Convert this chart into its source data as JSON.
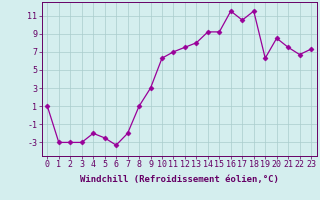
{
  "x": [
    0,
    1,
    2,
    3,
    4,
    5,
    6,
    7,
    8,
    9,
    10,
    11,
    12,
    13,
    14,
    15,
    16,
    17,
    18,
    19,
    20,
    21,
    22,
    23
  ],
  "y": [
    1,
    -3,
    -3,
    -3,
    -2,
    -2.5,
    -3.3,
    -2,
    1,
    3,
    6.3,
    7,
    7.5,
    8,
    9.2,
    9.2,
    11.5,
    10.5,
    11.5,
    6.3,
    8.5,
    7.5,
    6.7,
    7.3
  ],
  "line_color": "#990099",
  "marker": "D",
  "marker_size": 2.5,
  "xlabel": "Windchill (Refroidissement éolien,°C)",
  "xlabel_fontsize": 6.5,
  "ylabel_ticks": [
    -3,
    -1,
    1,
    3,
    5,
    7,
    9,
    11
  ],
  "xlim": [
    -0.5,
    23.5
  ],
  "ylim": [
    -4.5,
    12.5
  ],
  "bg_color": "#d4eeee",
  "grid_color": "#aacccc",
  "tick_color": "#660066",
  "tick_fontsize": 6.0,
  "linewidth": 0.9
}
